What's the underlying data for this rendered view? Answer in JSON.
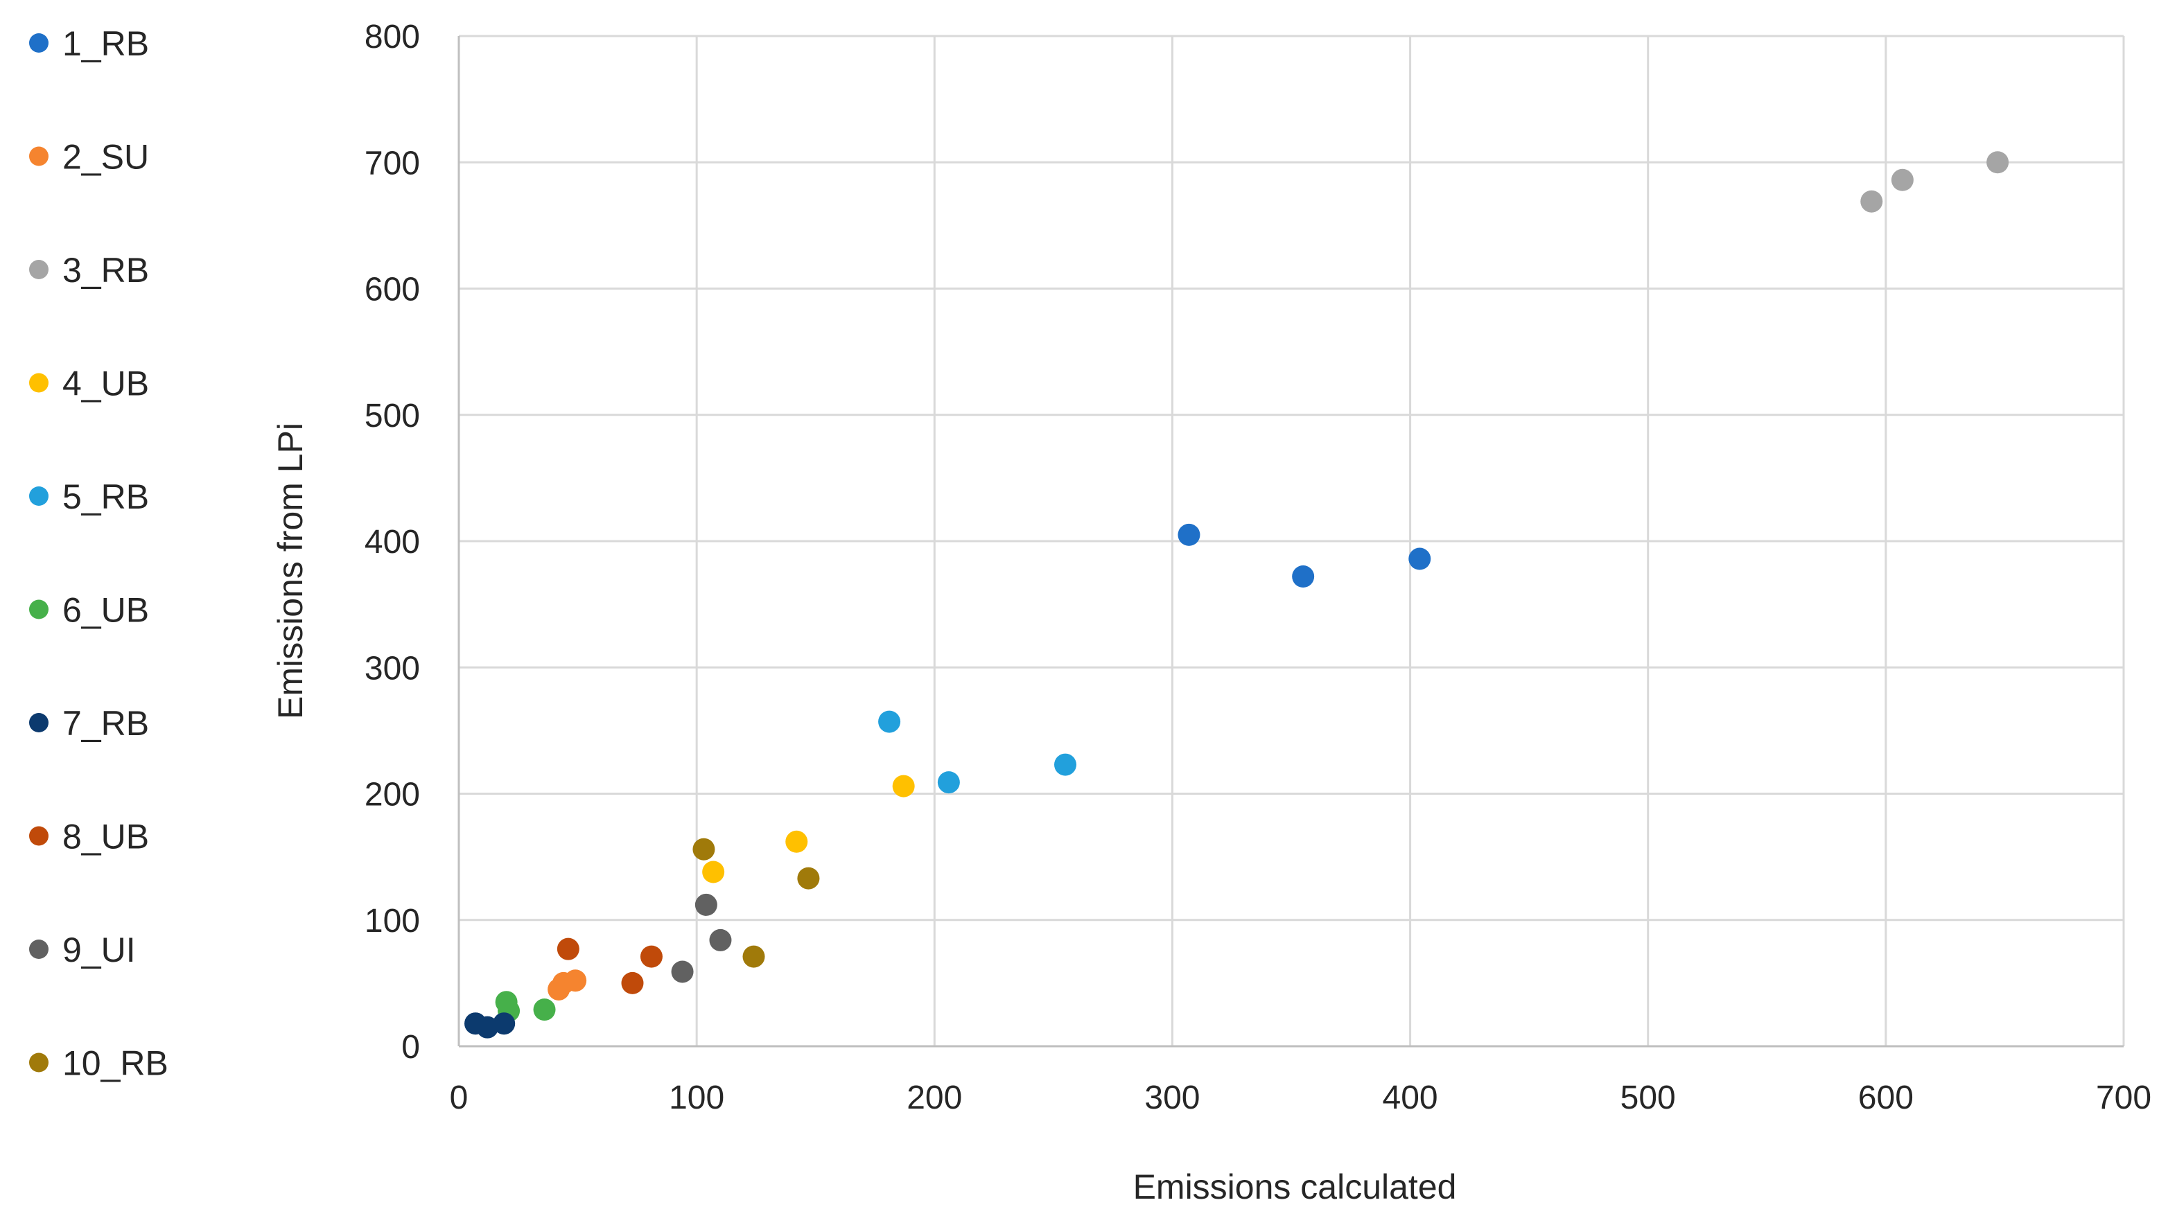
{
  "chart_data": {
    "type": "scatter",
    "title": "",
    "xlabel": "Emissions calculated",
    "ylabel": "Emissions from LPi",
    "xlim": [
      0,
      700
    ],
    "ylim": [
      0,
      800
    ],
    "xticks": [
      0,
      100,
      200,
      300,
      400,
      500,
      600,
      700
    ],
    "yticks": [
      0,
      100,
      200,
      300,
      400,
      500,
      600,
      700,
      800
    ],
    "grid": true,
    "legend_position": "left",
    "series": [
      {
        "name": "1_RB",
        "color": "#1F70C8",
        "points": [
          [
            307,
            405
          ],
          [
            355,
            372
          ],
          [
            404,
            386
          ]
        ]
      },
      {
        "name": "2_SU",
        "color": "#F5842F",
        "points": [
          [
            42,
            45
          ],
          [
            44,
            50
          ],
          [
            49,
            52
          ]
        ]
      },
      {
        "name": "3_RB",
        "color": "#A5A5A5",
        "points": [
          [
            594,
            669
          ],
          [
            607,
            686
          ],
          [
            647,
            700
          ]
        ]
      },
      {
        "name": "4_UB",
        "color": "#FFC000",
        "points": [
          [
            107,
            138
          ],
          [
            142,
            162
          ],
          [
            187,
            206
          ]
        ]
      },
      {
        "name": "5_RB",
        "color": "#22A0DC",
        "points": [
          [
            181,
            257
          ],
          [
            206,
            209
          ],
          [
            255,
            223
          ]
        ]
      },
      {
        "name": "6_UB",
        "color": "#46B04A",
        "points": [
          [
            20,
            35
          ],
          [
            21,
            28
          ],
          [
            36,
            29
          ]
        ]
      },
      {
        "name": "7_RB",
        "color": "#0C3A6E",
        "points": [
          [
            7,
            18
          ],
          [
            12,
            15
          ],
          [
            19,
            18
          ]
        ]
      },
      {
        "name": "8_UB",
        "color": "#C04A0A",
        "points": [
          [
            46,
            77
          ],
          [
            73,
            50
          ],
          [
            81,
            71
          ]
        ]
      },
      {
        "name": "9_UI",
        "color": "#616161",
        "points": [
          [
            94,
            59
          ],
          [
            104,
            112
          ],
          [
            110,
            84
          ]
        ]
      },
      {
        "name": "10_RB",
        "color": "#A07A0A",
        "points": [
          [
            103,
            156
          ],
          [
            124,
            71
          ],
          [
            147,
            133
          ]
        ]
      }
    ]
  }
}
